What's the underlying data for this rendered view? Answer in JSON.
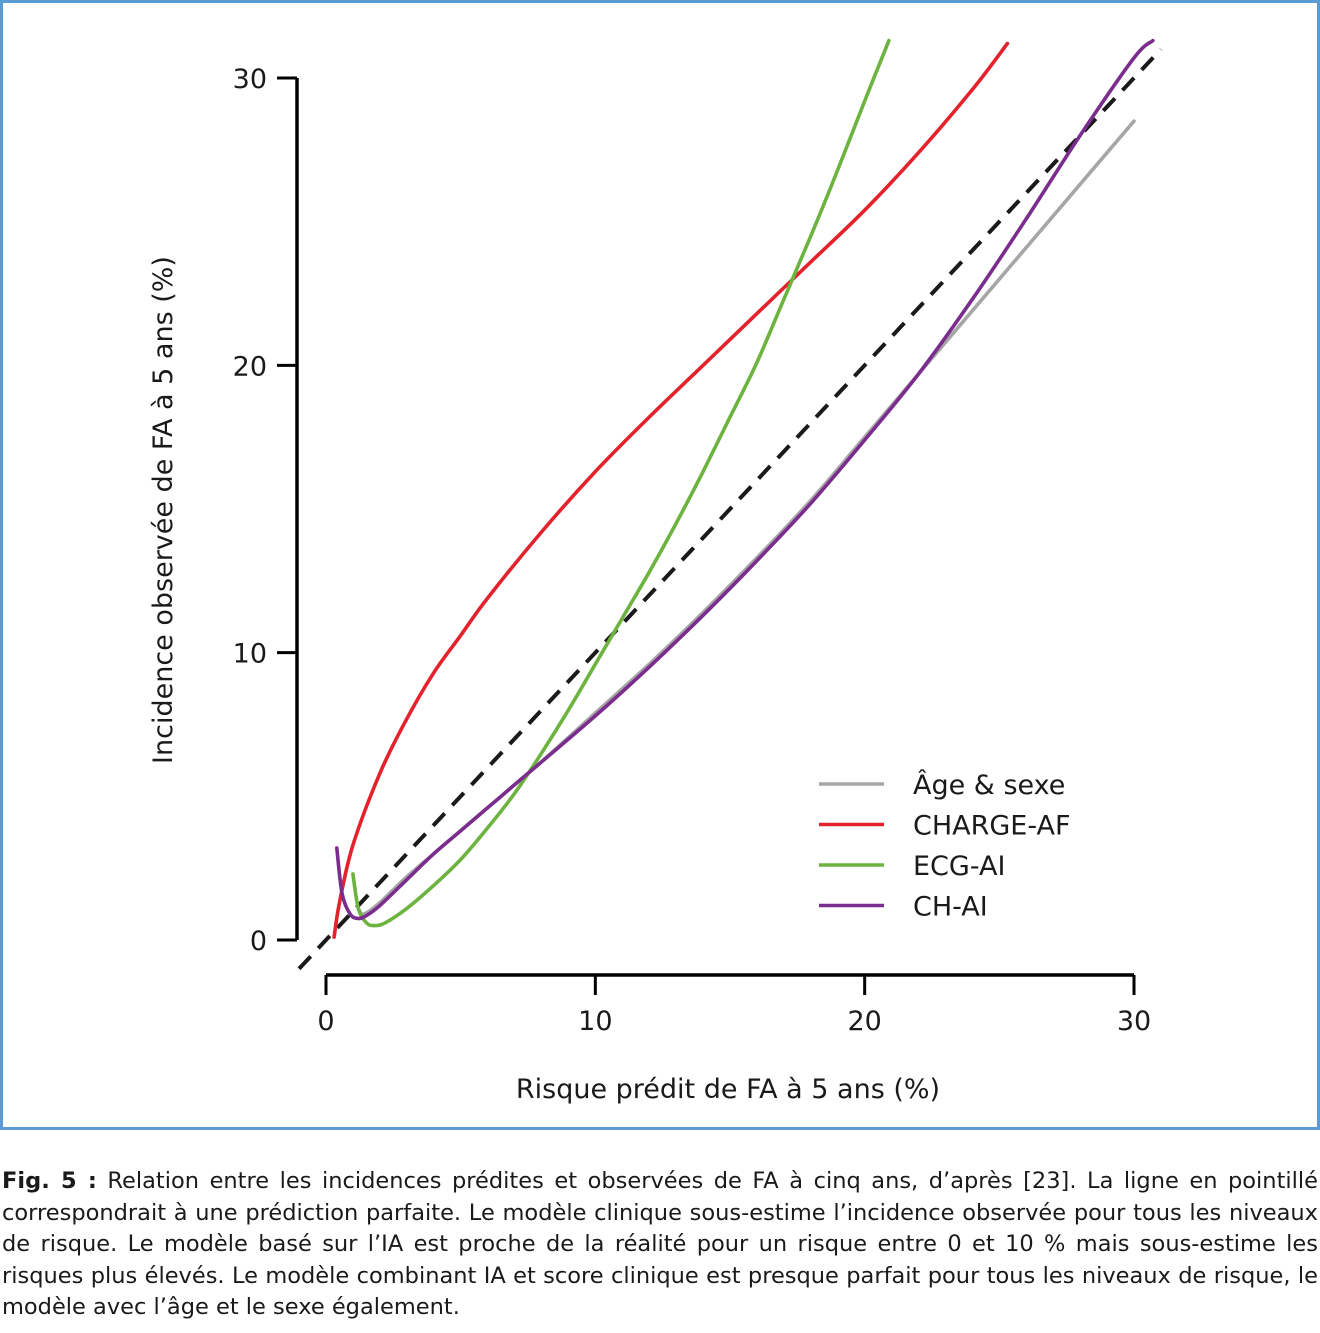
{
  "colors": {
    "frame": "#5b9bd5",
    "age_sexe": "#a6a6a6",
    "charge_af": "#e3222b",
    "ecg_ai": "#6cb33f",
    "ch_ai": "#7b2d8e",
    "reference": "#1a1a1a"
  },
  "chart_data": {
    "type": "line",
    "xlabel": "Risque prédit de FA à 5 ans (%)",
    "ylabel": "Incidence observée de FA à 5 ans (%)",
    "xlim": [
      0,
      30
    ],
    "ylim": [
      0,
      30
    ],
    "x_ticks": [
      "0",
      "10",
      "20",
      "30"
    ],
    "y_ticks": [
      "0",
      "10",
      "20",
      "30"
    ],
    "grid": false,
    "legend_position": "bottom-right",
    "reference_line": {
      "style": "dashed",
      "x": [
        -1,
        31
      ],
      "y": [
        -1,
        31
      ]
    },
    "series": [
      {
        "name": "Âge & sexe",
        "color_key": "age_sexe",
        "x": [
          1.2,
          1.4,
          2,
          3,
          4,
          5,
          6,
          7,
          8,
          10,
          12,
          14,
          16,
          18,
          20,
          22,
          24,
          26,
          28,
          30
        ],
        "y": [
          1.1,
          0.9,
          1.3,
          2.2,
          3.0,
          3.8,
          4.6,
          5.4,
          6.2,
          7.9,
          9.6,
          11.4,
          13.3,
          15.3,
          17.5,
          19.7,
          21.9,
          24.1,
          26.3,
          28.5
        ]
      },
      {
        "name": "CHARGE-AF",
        "color_key": "charge_af",
        "x": [
          0.3,
          0.5,
          1,
          2,
          3,
          4,
          5,
          6,
          8,
          10,
          12,
          14,
          16,
          18,
          20,
          22,
          24,
          25.3
        ],
        "y": [
          0.1,
          1.3,
          3.3,
          5.8,
          7.7,
          9.3,
          10.6,
          11.9,
          14.2,
          16.3,
          18.2,
          20.0,
          21.8,
          23.6,
          25.4,
          27.4,
          29.6,
          31.2
        ]
      },
      {
        "name": "ECG-AI",
        "color_key": "ecg_ai",
        "x": [
          1.0,
          1.2,
          1.5,
          1.8,
          2.2,
          3,
          4,
          5,
          6,
          7,
          8,
          9,
          10,
          11,
          12,
          13,
          14,
          15,
          16,
          17,
          18,
          19,
          20,
          20.9
        ],
        "y": [
          2.3,
          1.1,
          0.6,
          0.5,
          0.6,
          1.1,
          1.9,
          2.8,
          3.9,
          5.1,
          6.5,
          8.0,
          9.6,
          11.2,
          12.8,
          14.5,
          16.3,
          18.2,
          20.1,
          22.3,
          24.5,
          26.8,
          29.2,
          31.3
        ]
      },
      {
        "name": "CH-AI",
        "color_key": "ch_ai",
        "x": [
          0.4,
          0.6,
          0.9,
          1.2,
          1.5,
          2,
          3,
          4,
          5,
          6,
          7,
          8,
          10,
          12,
          14,
          16,
          18,
          20,
          22,
          24,
          26,
          28,
          30,
          30.7
        ],
        "y": [
          3.2,
          1.6,
          0.9,
          0.75,
          0.85,
          1.2,
          2.1,
          3.0,
          3.8,
          4.6,
          5.4,
          6.2,
          7.8,
          9.5,
          11.3,
          13.2,
          15.2,
          17.4,
          19.7,
          22.3,
          25.1,
          28.0,
          30.7,
          31.3
        ]
      }
    ]
  },
  "caption": {
    "label": "Fig. 5 :",
    "text": " Relation entre les incidences prédites et observées de FA à cinq ans, d’après [23]. La ligne en pointillé correspondrait à une prédiction parfaite. Le modèle clinique sous-estime l’incidence observée pour tous les niveaux de risque. Le modèle basé sur l’IA est proche de la réalité pour un risque entre 0 et 10 % mais sous-estime les risques plus élevés. Le modèle combinant IA et score clinique est presque parfait pour tous les niveaux de risque, le modèle avec l’âge et le sexe également."
  }
}
